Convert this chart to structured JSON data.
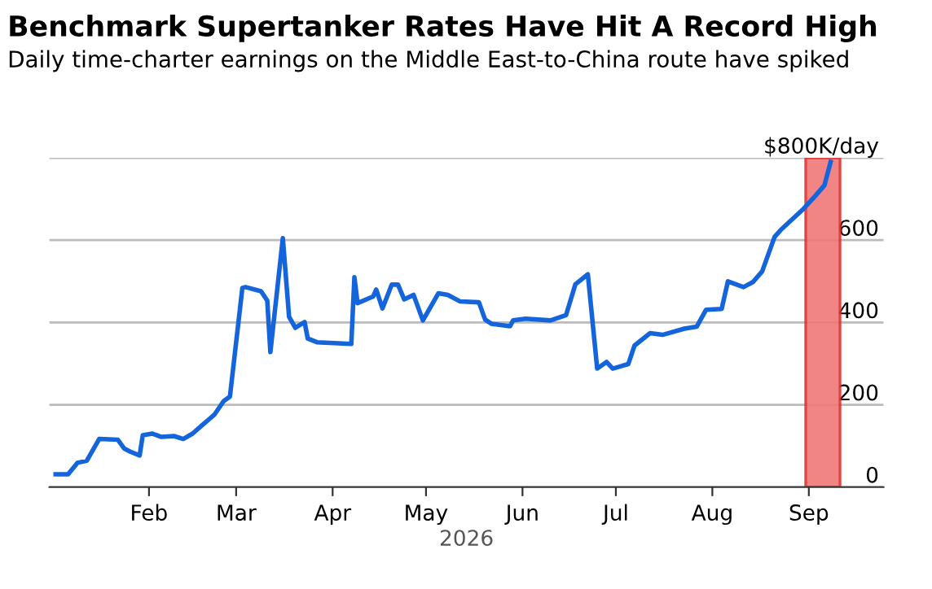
{
  "chart_data": {
    "type": "line",
    "title": "Benchmark Supertanker Rates Have Hit A Record High",
    "subtitle": "Daily time-charter earnings on the Middle East-to-China route have spiked",
    "xlabel": "2026",
    "x": [
      "2026-01-02",
      "2026-01-06",
      "2026-01-09",
      "2026-01-12",
      "2026-01-16",
      "2026-01-22",
      "2026-01-24",
      "2026-01-26",
      "2026-01-29",
      "2026-01-30",
      "2026-02-02",
      "2026-02-05",
      "2026-02-09",
      "2026-02-12",
      "2026-02-15",
      "2026-02-18",
      "2026-02-22",
      "2026-02-25",
      "2026-02-27",
      "2026-03-03",
      "2026-03-04",
      "2026-03-09",
      "2026-03-11",
      "2026-03-12",
      "2026-03-16",
      "2026-03-18",
      "2026-03-20",
      "2026-03-23",
      "2026-03-24",
      "2026-03-27",
      "2026-04-07",
      "2026-04-08",
      "2026-04-09",
      "2026-04-14",
      "2026-04-15",
      "2026-04-17",
      "2026-04-20",
      "2026-04-22",
      "2026-04-24",
      "2026-04-27",
      "2026-04-30",
      "2026-05-05",
      "2026-05-08",
      "2026-05-12",
      "2026-05-18",
      "2026-05-20",
      "2026-05-22",
      "2026-05-28",
      "2026-05-29",
      "2026-06-02",
      "2026-06-10",
      "2026-06-15",
      "2026-06-18",
      "2026-06-22",
      "2026-06-25",
      "2026-06-28",
      "2026-06-30",
      "2026-07-05",
      "2026-07-07",
      "2026-07-12",
      "2026-07-16",
      "2026-07-23",
      "2026-07-27",
      "2026-07-30",
      "2026-08-04",
      "2026-08-06",
      "2026-08-11",
      "2026-08-14",
      "2026-08-17",
      "2026-08-21",
      "2026-08-23",
      "2026-08-30",
      "2026-09-03",
      "2026-09-06",
      "2026-09-08"
    ],
    "series": [
      {
        "color": "#1464dc",
        "values": [
          31,
          31,
          59,
          64,
          117,
          115,
          94,
          86,
          77,
          126,
          130,
          122,
          124,
          117,
          130,
          150,
          176,
          209,
          220,
          484,
          486,
          476,
          453,
          328,
          605,
          414,
          387,
          401,
          361,
          352,
          348,
          510,
          447,
          463,
          480,
          434,
          492,
          492,
          456,
          467,
          405,
          471,
          467,
          451,
          449,
          407,
          397,
          391,
          405,
          409,
          405,
          418,
          493,
          517,
          288,
          304,
          288,
          299,
          344,
          374,
          370,
          385,
          390,
          431,
          433,
          500,
          486,
          498,
          524,
          608,
          625,
          674,
          707,
          733,
          790
        ]
      }
    ],
    "xlim": [
      "2025-12-31",
      "2026-09-25"
    ],
    "xticks": [
      {
        "value": "2026-02-01",
        "label": "Feb"
      },
      {
        "value": "2026-03-01",
        "label": "Mar"
      },
      {
        "value": "2026-04-01",
        "label": "Apr"
      },
      {
        "value": "2026-05-01",
        "label": "May"
      },
      {
        "value": "2026-06-01",
        "label": "Jun"
      },
      {
        "value": "2026-07-01",
        "label": "Jul"
      },
      {
        "value": "2026-08-01",
        "label": "Aug"
      },
      {
        "value": "2026-09-01",
        "label": "Sep"
      }
    ],
    "ylim": [
      0,
      800
    ],
    "yticks": [
      0,
      200,
      400,
      600,
      {
        "value": 800,
        "label": "$800K/day"
      }
    ],
    "bands": [
      {
        "axis": "x",
        "from": "2026-08-31",
        "to": "2026-09-11",
        "color": "#f07878"
      }
    ],
    "grid": "y",
    "legend": false,
    "marker": "none",
    "line_style": "solid"
  }
}
